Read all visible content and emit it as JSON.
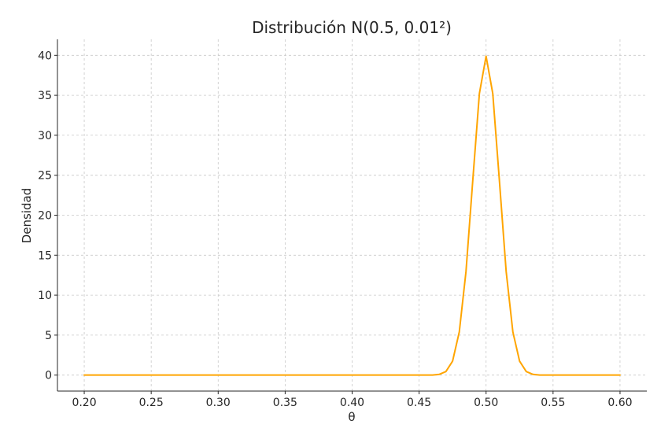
{
  "chart_data": {
    "type": "line",
    "title": "Distribución N(0.5, 0.01²)",
    "xlabel": "θ",
    "ylabel": "Densidad",
    "xlim": [
      0.18,
      0.62
    ],
    "ylim": [
      -2,
      42
    ],
    "x_ticks": [
      0.2,
      0.25,
      0.3,
      0.35,
      0.4,
      0.45,
      0.5,
      0.55,
      0.6
    ],
    "x_tick_labels": [
      "0.20",
      "0.25",
      "0.30",
      "0.35",
      "0.40",
      "0.45",
      "0.50",
      "0.55",
      "0.60"
    ],
    "y_ticks": [
      0,
      5,
      10,
      15,
      20,
      25,
      30,
      35,
      40
    ],
    "y_tick_labels": [
      "0",
      "5",
      "10",
      "15",
      "20",
      "25",
      "30",
      "35",
      "40"
    ],
    "grid": true,
    "series": [
      {
        "color": "#FFA500",
        "x": [
          0.2,
          0.3,
          0.4,
          0.45,
          0.46,
          0.465,
          0.47,
          0.475,
          0.48,
          0.485,
          0.49,
          0.495,
          0.5,
          0.505,
          0.51,
          0.515,
          0.52,
          0.525,
          0.53,
          0.535,
          0.54,
          0.55,
          0.6
        ],
        "y": [
          0,
          0,
          0,
          0,
          0.01,
          0.09,
          0.44,
          1.75,
          5.4,
          12.95,
          24.2,
          35.21,
          39.89,
          35.21,
          24.2,
          12.95,
          5.4,
          1.75,
          0.44,
          0.09,
          0.01,
          0,
          0
        ]
      }
    ]
  }
}
